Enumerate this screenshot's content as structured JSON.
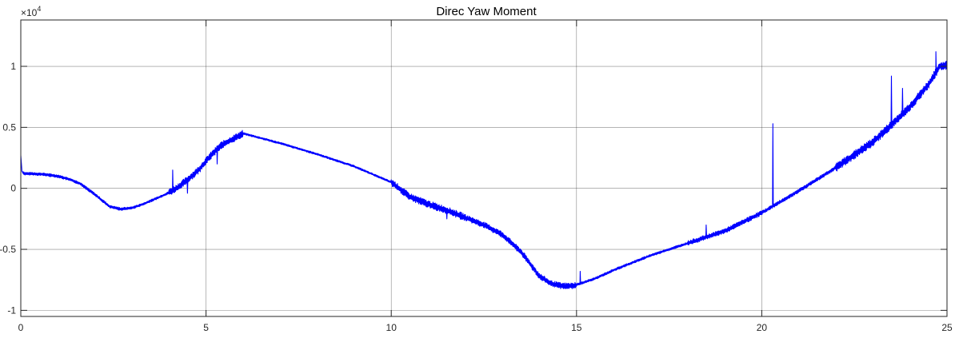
{
  "chart_data": {
    "type": "line",
    "title": "Direc Yaw Moment",
    "xlabel": "",
    "ylabel": "",
    "xlim": [
      0,
      25
    ],
    "ylim": [
      -1.05,
      1.38
    ],
    "y_exponent_base": "×10",
    "y_exponent_power": "4",
    "grid": true,
    "line_color": "#0000ff",
    "x_ticks": [
      0,
      5,
      10,
      15,
      20,
      25
    ],
    "x_tick_labels": [
      "0",
      "5",
      "10",
      "15",
      "20",
      "25"
    ],
    "y_ticks": [
      -1,
      -0.5,
      0,
      0.5,
      1
    ],
    "y_tick_labels": [
      "-1",
      "-0.5",
      "0",
      "0.5",
      "1"
    ],
    "series": [
      {
        "x": [
          0,
          0.03,
          0.1,
          0.3,
          0.6,
          1.0,
          1.3,
          1.6,
          2.0,
          2.4,
          2.7,
          3.0,
          3.3,
          3.6,
          3.9,
          4.2,
          4.5,
          4.8,
          5.1,
          5.4,
          5.7,
          6.0,
          7.0,
          8.0,
          9.0,
          10.0,
          10.5,
          11.0,
          11.5,
          12.0,
          12.5,
          13.0,
          13.5,
          13.8,
          14.0,
          14.3,
          14.6,
          14.9,
          15.0,
          15.5,
          16.0,
          17.0,
          18.0,
          19.0,
          20.0,
          20.5,
          21.0,
          22.0,
          23.0,
          23.5,
          24.0,
          24.5,
          24.8,
          25.0
        ],
        "y": [
          0.27,
          0.14,
          0.12,
          0.12,
          0.115,
          0.1,
          0.075,
          0.04,
          -0.05,
          -0.15,
          -0.17,
          -0.16,
          -0.13,
          -0.09,
          -0.05,
          0.0,
          0.07,
          0.15,
          0.26,
          0.35,
          0.4,
          0.45,
          0.37,
          0.28,
          0.18,
          0.05,
          -0.07,
          -0.13,
          -0.18,
          -0.24,
          -0.3,
          -0.38,
          -0.52,
          -0.64,
          -0.72,
          -0.78,
          -0.8,
          -0.8,
          -0.79,
          -0.74,
          -0.67,
          -0.55,
          -0.45,
          -0.35,
          -0.2,
          -0.11,
          -0.02,
          0.17,
          0.38,
          0.52,
          0.67,
          0.85,
          1.0,
          1.01
        ],
        "spikes": [
          {
            "x": 4.1,
            "y": 0.15
          },
          {
            "x": 4.5,
            "y": -0.04
          },
          {
            "x": 5.3,
            "y": 0.2
          },
          {
            "x": 11.5,
            "y": -0.25
          },
          {
            "x": 15.1,
            "y": -0.68
          },
          {
            "x": 18.5,
            "y": -0.3
          },
          {
            "x": 20.3,
            "y": 0.53
          },
          {
            "x": 22.3,
            "y": 0.22
          },
          {
            "x": 23.5,
            "y": 0.92
          },
          {
            "x": 23.8,
            "y": 0.82
          },
          {
            "x": 24.7,
            "y": 1.12
          }
        ]
      }
    ]
  }
}
